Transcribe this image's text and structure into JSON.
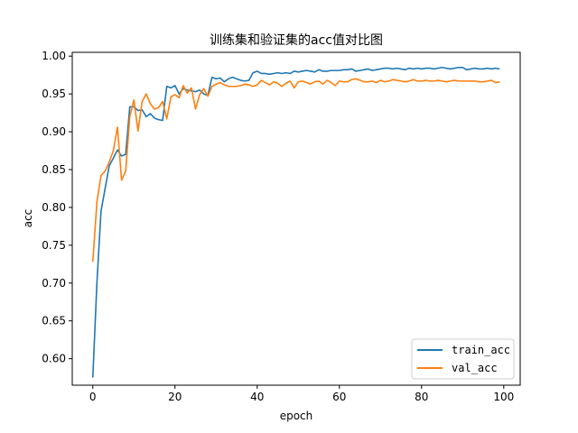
{
  "chart_data": {
    "type": "line",
    "title": "训练集和验证集的acc值对比图",
    "xlabel": "epoch",
    "ylabel": "acc",
    "xlim": [
      -5,
      104
    ],
    "ylim": [
      0.565,
      1.005
    ],
    "xticks": [
      0,
      20,
      40,
      60,
      80,
      100
    ],
    "xtick_labels": [
      "0",
      "20",
      "40",
      "60",
      "80",
      "100"
    ],
    "yticks": [
      0.6,
      0.65,
      0.7,
      0.75,
      0.8,
      0.85,
      0.9,
      0.95,
      1.0
    ],
    "ytick_labels": [
      "0.60",
      "0.65",
      "0.70",
      "0.75",
      "0.80",
      "0.85",
      "0.90",
      "0.95",
      "1.00"
    ],
    "grid": false,
    "legend_position": "lower-right",
    "x": [
      0,
      1,
      2,
      3,
      4,
      5,
      6,
      7,
      8,
      9,
      10,
      11,
      12,
      13,
      14,
      15,
      16,
      17,
      18,
      19,
      20,
      21,
      22,
      23,
      24,
      25,
      26,
      27,
      28,
      29,
      30,
      31,
      32,
      33,
      34,
      35,
      36,
      37,
      38,
      39,
      40,
      41,
      42,
      43,
      44,
      45,
      46,
      47,
      48,
      49,
      50,
      51,
      52,
      53,
      54,
      55,
      56,
      57,
      58,
      59,
      60,
      61,
      62,
      63,
      64,
      65,
      66,
      67,
      68,
      69,
      70,
      71,
      72,
      73,
      74,
      75,
      76,
      77,
      78,
      79,
      80,
      81,
      82,
      83,
      84,
      85,
      86,
      87,
      88,
      89,
      90,
      91,
      92,
      93,
      94,
      95,
      96,
      97,
      98,
      99
    ],
    "series": [
      {
        "name": "train_acc",
        "color": "#1f77b4",
        "values": [
          0.575,
          0.7,
          0.795,
          0.825,
          0.855,
          0.865,
          0.876,
          0.868,
          0.87,
          0.933,
          0.933,
          0.928,
          0.929,
          0.92,
          0.924,
          0.918,
          0.916,
          0.915,
          0.96,
          0.958,
          0.961,
          0.95,
          0.957,
          0.955,
          0.954,
          0.953,
          0.955,
          0.95,
          0.948,
          0.972,
          0.97,
          0.971,
          0.966,
          0.97,
          0.972,
          0.97,
          0.968,
          0.967,
          0.968,
          0.978,
          0.98,
          0.977,
          0.977,
          0.976,
          0.977,
          0.978,
          0.977,
          0.978,
          0.977,
          0.98,
          0.979,
          0.98,
          0.981,
          0.98,
          0.979,
          0.982,
          0.98,
          0.98,
          0.981,
          0.981,
          0.981,
          0.982,
          0.982,
          0.983,
          0.98,
          0.981,
          0.982,
          0.983,
          0.981,
          0.982,
          0.983,
          0.984,
          0.984,
          0.983,
          0.984,
          0.983,
          0.982,
          0.984,
          0.983,
          0.984,
          0.983,
          0.984,
          0.984,
          0.983,
          0.984,
          0.985,
          0.984,
          0.983,
          0.984,
          0.985,
          0.985,
          0.982,
          0.983,
          0.984,
          0.983,
          0.983,
          0.984,
          0.983,
          0.984,
          0.983
        ]
      },
      {
        "name": "val_acc",
        "color": "#ff7f0e",
        "values": [
          0.728,
          0.807,
          0.842,
          0.848,
          0.86,
          0.875,
          0.906,
          0.836,
          0.848,
          0.92,
          0.942,
          0.901,
          0.94,
          0.95,
          0.937,
          0.93,
          0.932,
          0.94,
          0.917,
          0.946,
          0.949,
          0.945,
          0.961,
          0.951,
          0.958,
          0.93,
          0.949,
          0.957,
          0.947,
          0.96,
          0.963,
          0.965,
          0.962,
          0.96,
          0.96,
          0.96,
          0.961,
          0.963,
          0.962,
          0.96,
          0.962,
          0.968,
          0.965,
          0.962,
          0.966,
          0.964,
          0.96,
          0.964,
          0.967,
          0.958,
          0.966,
          0.967,
          0.965,
          0.963,
          0.966,
          0.967,
          0.963,
          0.968,
          0.965,
          0.961,
          0.967,
          0.966,
          0.966,
          0.969,
          0.97,
          0.968,
          0.966,
          0.966,
          0.967,
          0.965,
          0.968,
          0.966,
          0.967,
          0.969,
          0.968,
          0.967,
          0.966,
          0.967,
          0.969,
          0.967,
          0.967,
          0.968,
          0.967,
          0.967,
          0.968,
          0.967,
          0.966,
          0.967,
          0.968,
          0.967,
          0.967,
          0.967,
          0.967,
          0.967,
          0.966,
          0.966,
          0.967,
          0.968,
          0.965,
          0.966
        ]
      }
    ]
  }
}
